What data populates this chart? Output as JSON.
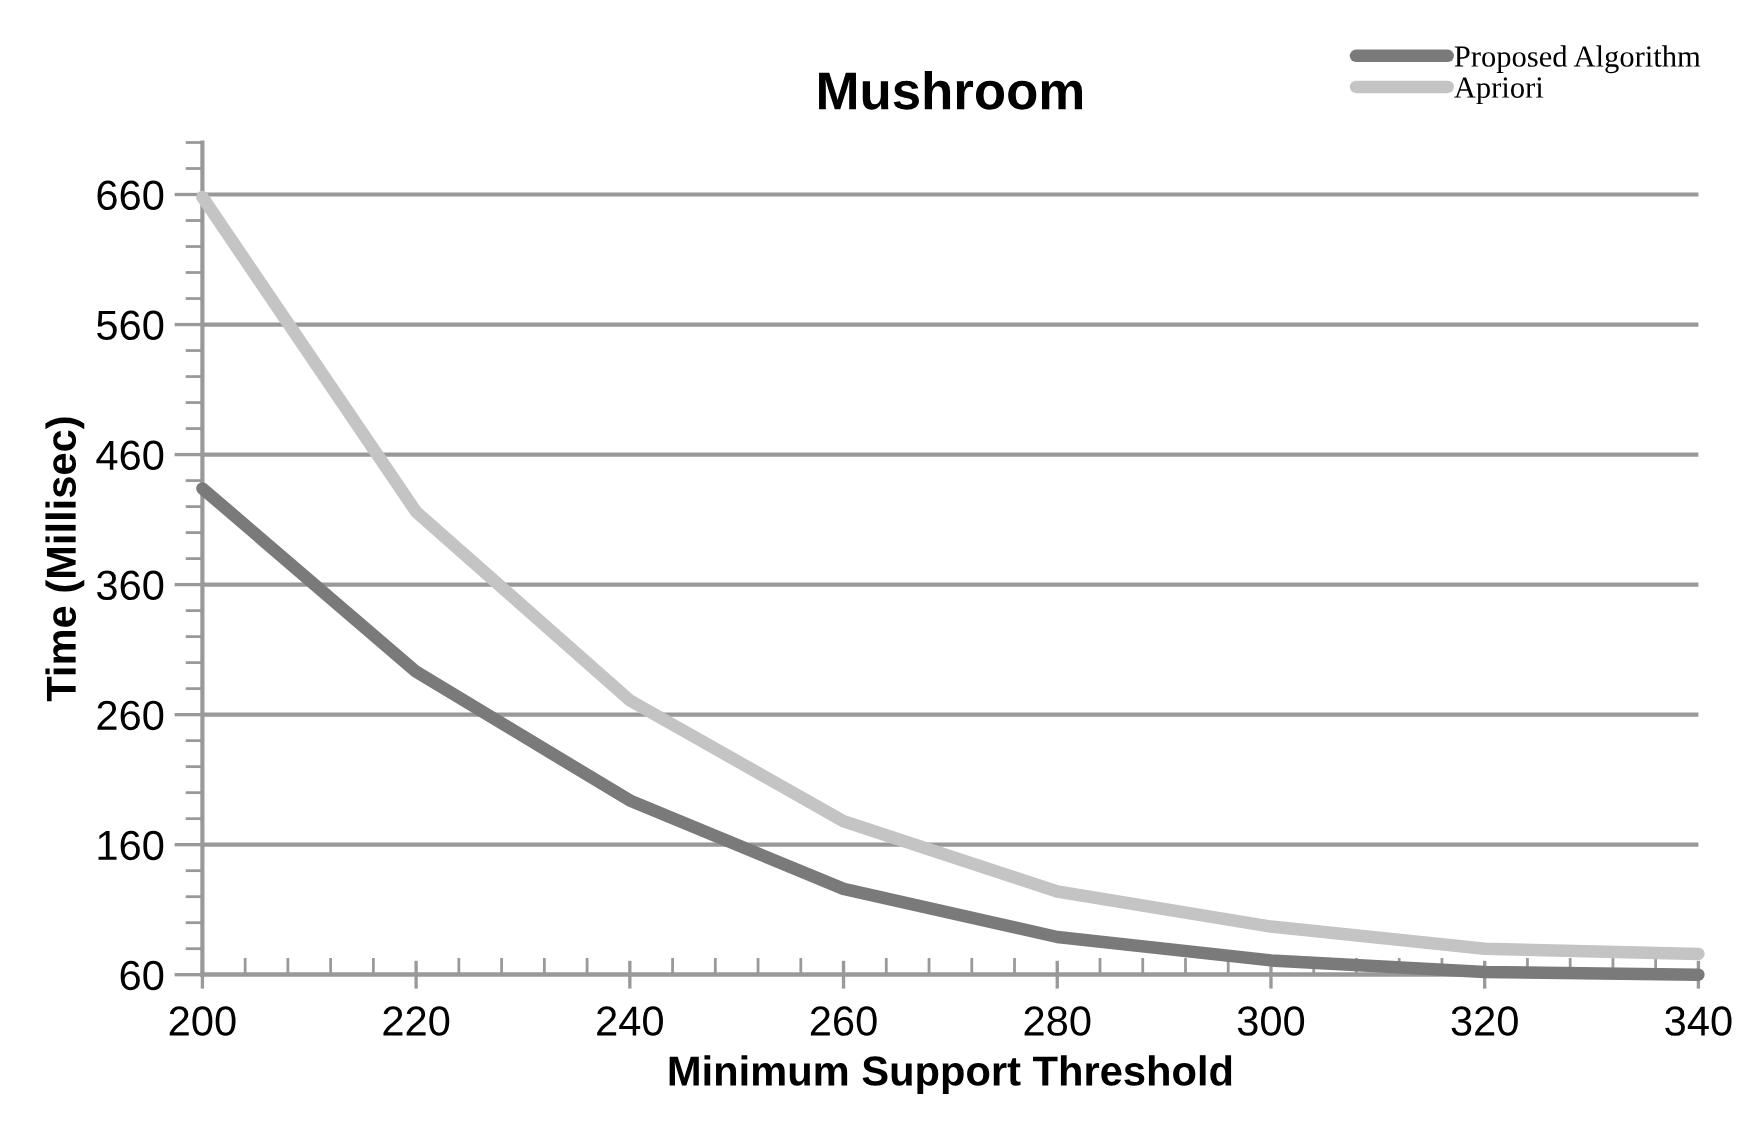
{
  "chart_data": {
    "type": "line",
    "title": "Mushroom",
    "xlabel": "Minimum Support Threshold",
    "ylabel": "Time (Millisec)",
    "x": [
      200,
      220,
      240,
      260,
      280,
      300,
      320,
      340
    ],
    "series": [
      {
        "name": "Proposed Algorithm",
        "color": "#7a7a7a",
        "values": [
          434,
          293,
          194,
          126,
          89,
          71,
          62,
          60
        ]
      },
      {
        "name": "Apriori",
        "color": "#c4c4c4",
        "values": [
          658,
          416,
          271,
          178,
          124,
          97,
          80,
          76
        ]
      }
    ],
    "xlim": [
      200,
      340
    ],
    "ylim": [
      60,
      700
    ],
    "xticks": [
      200,
      220,
      240,
      260,
      280,
      300,
      320,
      340
    ],
    "yticks": [
      60,
      160,
      260,
      360,
      460,
      560,
      660
    ],
    "grid": "y",
    "legend": "top right",
    "marker": "none",
    "line_style": "solid"
  }
}
